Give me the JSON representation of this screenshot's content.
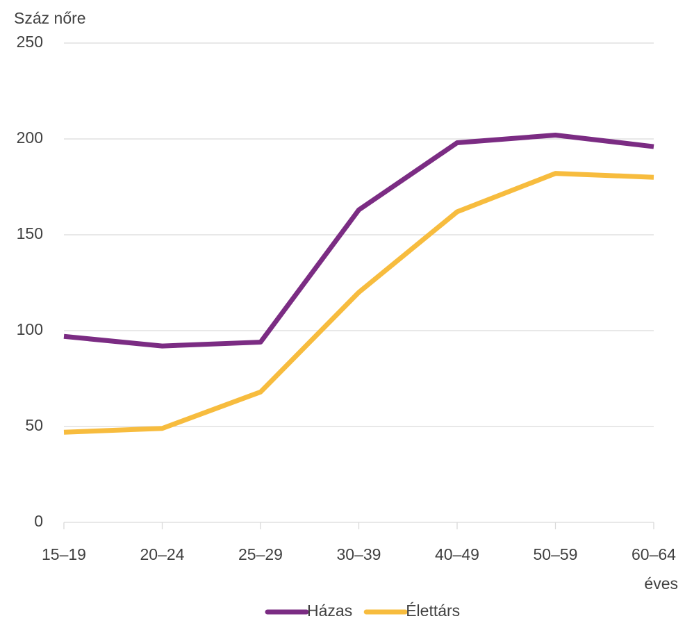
{
  "chart_data": {
    "type": "line",
    "y_label": "Száz nőre",
    "x_label": "éves",
    "categories": [
      "15–19",
      "20–24",
      "25–29",
      "30–39",
      "40–49",
      "50–59",
      "60–64"
    ],
    "series": [
      {
        "name": "Házas",
        "color": "#7b2c83",
        "values": [
          97,
          92,
          94,
          163,
          198,
          202,
          196
        ]
      },
      {
        "name": "Élettárs",
        "color": "#f7bc3e",
        "values": [
          47,
          49,
          68,
          120,
          162,
          182,
          180
        ]
      }
    ],
    "ylim": [
      0,
      250
    ],
    "yticks": [
      0,
      50,
      100,
      150,
      200,
      250
    ],
    "grid": true,
    "legend": "bottom"
  }
}
